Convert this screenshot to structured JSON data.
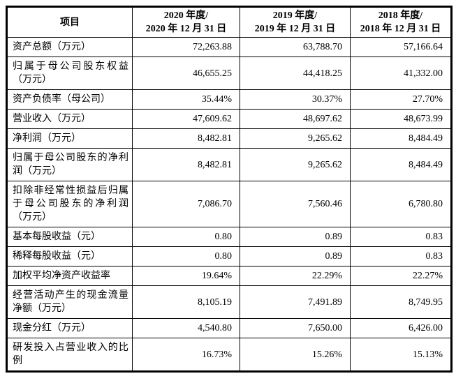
{
  "colors": {
    "border": "#000000",
    "text": "#000000",
    "background": "#ffffff"
  },
  "table": {
    "header": {
      "item_label": "项目",
      "periods": [
        {
          "line1": "2020 年度/",
          "line2": "2020 年 12 月 31 日"
        },
        {
          "line1": "2019 年度/",
          "line2": "2019 年 12 月 31 日"
        },
        {
          "line1": "2018 年度/",
          "line2": "2018 年 12 月 31 日"
        }
      ]
    },
    "rows": [
      {
        "label": "资产总额（万元）",
        "values": [
          "72,263.88",
          "63,788.70",
          "57,166.64"
        ]
      },
      {
        "label": "归属于母公司股东权益（万元）",
        "values": [
          "46,655.25",
          "44,418.25",
          "41,332.00"
        ]
      },
      {
        "label": "资产负债率（母公司）",
        "values": [
          "35.44%",
          "30.37%",
          "27.70%"
        ]
      },
      {
        "label": "营业收入（万元）",
        "values": [
          "47,609.62",
          "48,697.62",
          "48,673.99"
        ]
      },
      {
        "label": "净利润（万元）",
        "values": [
          "8,482.81",
          "9,265.62",
          "8,484.49"
        ]
      },
      {
        "label": "归属于母公司股东的净利润（万元）",
        "values": [
          "8,482.81",
          "9,265.62",
          "8,484.49"
        ]
      },
      {
        "label": "扣除非经常性损益后归属于母公司股东的净利润（万元）",
        "values": [
          "7,086.70",
          "7,560.46",
          "6,780.80"
        ]
      },
      {
        "label": "基本每股收益（元）",
        "values": [
          "0.80",
          "0.89",
          "0.83"
        ]
      },
      {
        "label": "稀释每股收益（元）",
        "values": [
          "0.80",
          "0.89",
          "0.83"
        ]
      },
      {
        "label": "加权平均净资产收益率",
        "values": [
          "19.64%",
          "22.29%",
          "22.27%"
        ]
      },
      {
        "label": "经营活动产生的现金流量净额（万元）",
        "values": [
          "8,105.19",
          "7,491.89",
          "8,749.95"
        ]
      },
      {
        "label": "现金分红（万元）",
        "values": [
          "4,540.80",
          "7,650.00",
          "6,426.00"
        ]
      },
      {
        "label": "研发投入占营业收入的比例",
        "values": [
          "16.73%",
          "15.26%",
          "15.13%"
        ]
      }
    ]
  }
}
